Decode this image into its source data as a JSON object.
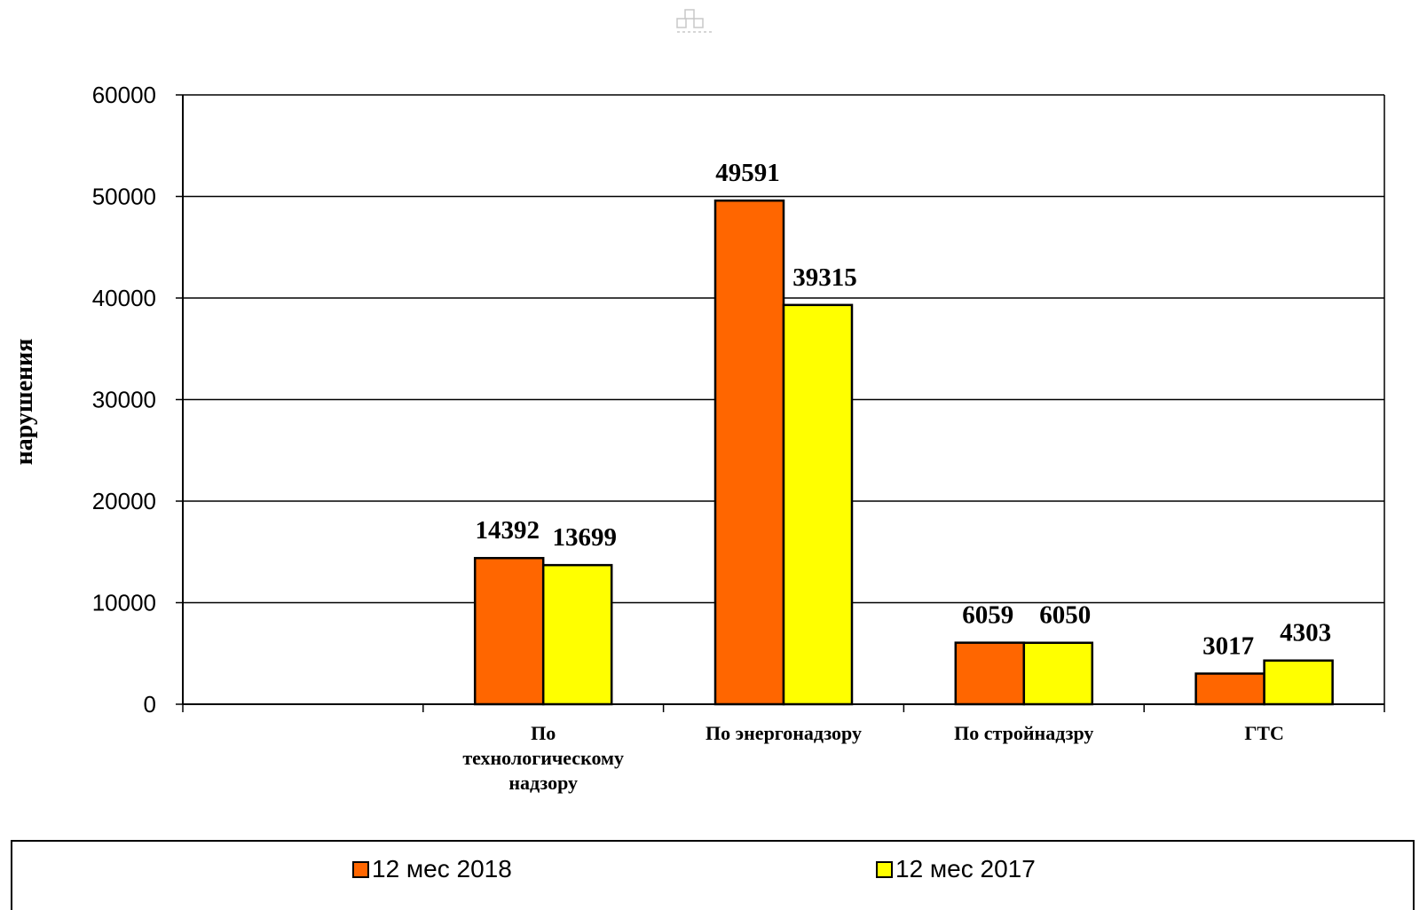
{
  "chart_data": {
    "type": "bar",
    "title": "",
    "xlabel": "",
    "ylabel": "нарушения",
    "ylim": [
      0,
      60000
    ],
    "yticks": [
      0,
      10000,
      20000,
      30000,
      40000,
      50000,
      60000
    ],
    "grid": true,
    "legend_position": "bottom",
    "categories": [
      "",
      "По технологическому надзору",
      "По энергонадзору",
      "По стройнадзру",
      "ГТС"
    ],
    "series": [
      {
        "name": "12 мес 2018",
        "color": "#FF6600",
        "values": [
          null,
          14392,
          49591,
          6059,
          3017
        ]
      },
      {
        "name": "12 мес 2017",
        "color": "#FFFF00",
        "values": [
          null,
          13699,
          39315,
          6050,
          4303
        ]
      }
    ]
  }
}
